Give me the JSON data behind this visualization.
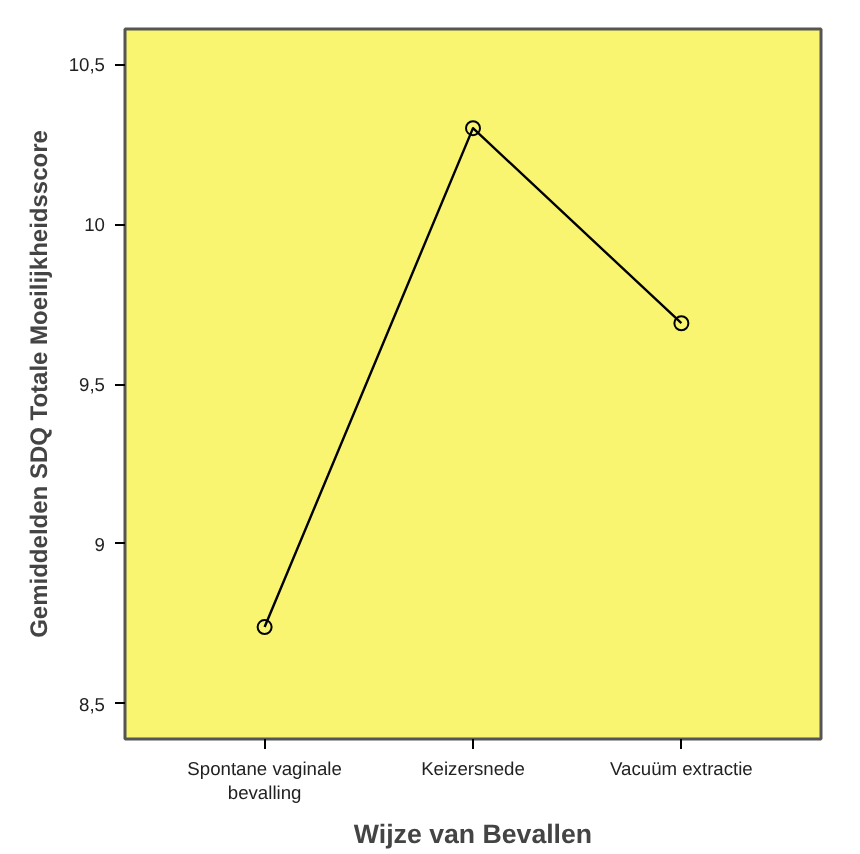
{
  "chart_data": {
    "type": "line",
    "xlabel": "Wijze van Bevallen",
    "ylabel": "Gemiddelden SDQ Totale Moeilijkheidsscore",
    "categories": [
      "Spontane vaginale bevalling",
      "Keizersnede",
      "Vacuüm extractie"
    ],
    "series": [
      {
        "color": "#000000",
        "values": [
          8.74,
          10.3,
          9.69
        ]
      }
    ],
    "ylim": [
      8.39,
      10.61
    ],
    "yticks": [
      {
        "value": 8.5,
        "label": "8,5"
      },
      {
        "value": 9,
        "label": "9"
      },
      {
        "value": 9.5,
        "label": "9,5"
      },
      {
        "value": 10,
        "label": "10"
      },
      {
        "value": 10.5,
        "label": "10,5"
      }
    ],
    "marker": "circle",
    "line_style": "solid"
  }
}
